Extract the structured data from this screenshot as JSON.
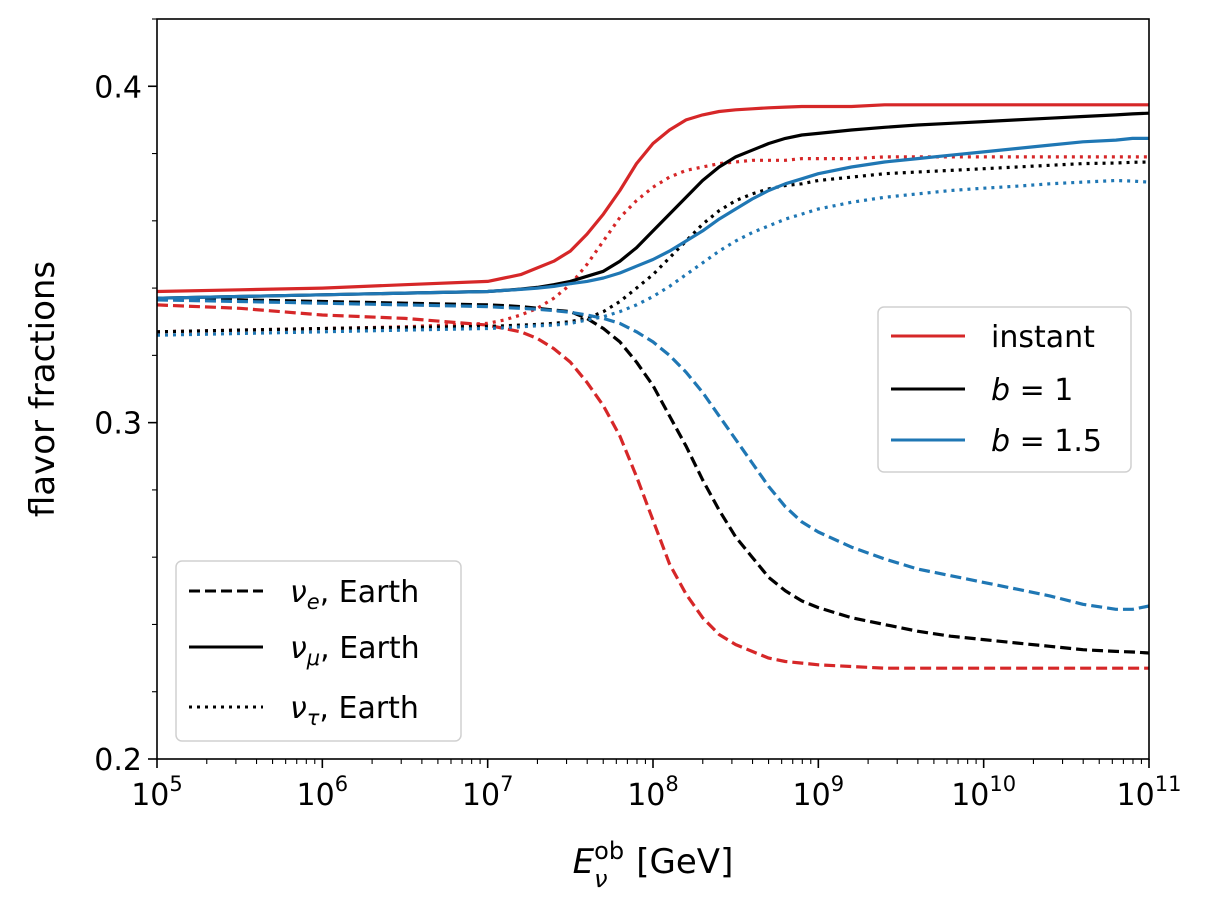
{
  "chart_data": {
    "type": "line",
    "xscale": "log",
    "xlim_log10": [
      5,
      11
    ],
    "ylim": [
      0.2,
      0.42
    ],
    "ylabel": "flavor fractions",
    "xlabel": {
      "base": "E",
      "sup": "ob",
      "sub": "ν",
      "unit": " [GeV]"
    },
    "x_ticks": [
      {
        "base": "10",
        "exp": "5"
      },
      {
        "base": "10",
        "exp": "6"
      },
      {
        "base": "10",
        "exp": "7"
      },
      {
        "base": "10",
        "exp": "8"
      },
      {
        "base": "10",
        "exp": "9"
      },
      {
        "base": "10",
        "exp": "10"
      },
      {
        "base": "10",
        "exp": "11"
      }
    ],
    "y_ticks": [
      "0.2",
      "0.3",
      "0.4"
    ],
    "y_tick_values": [
      0.2,
      0.3,
      0.4
    ],
    "colors": {
      "instant": "#d62728",
      "b1": "#000000",
      "b15": "#1f77b4"
    },
    "x_log10": [
      5.0,
      5.5,
      6.0,
      6.5,
      7.0,
      7.1,
      7.2,
      7.3,
      7.4,
      7.5,
      7.6,
      7.7,
      7.8,
      7.9,
      8.0,
      8.1,
      8.2,
      8.3,
      8.4,
      8.5,
      8.6,
      8.7,
      8.8,
      8.9,
      9.0,
      9.2,
      9.4,
      9.6,
      9.8,
      10.0,
      10.2,
      10.4,
      10.6,
      10.8,
      10.9,
      11.0
    ],
    "series": [
      {
        "name": "instant ν_e",
        "model": "instant",
        "flavor": "e",
        "color": "#d62728",
        "dash": "dashed",
        "values": [
          0.335,
          0.334,
          0.332,
          0.331,
          0.329,
          0.328,
          0.327,
          0.325,
          0.322,
          0.318,
          0.312,
          0.305,
          0.296,
          0.284,
          0.271,
          0.258,
          0.249,
          0.242,
          0.237,
          0.234,
          0.232,
          0.23,
          0.229,
          0.2285,
          0.228,
          0.2275,
          0.227,
          0.227,
          0.227,
          0.227,
          0.227,
          0.227,
          0.227,
          0.227,
          0.227,
          0.227
        ]
      },
      {
        "name": "instant ν_μ",
        "model": "instant",
        "flavor": "mu",
        "color": "#d62728",
        "dash": "solid",
        "values": [
          0.339,
          0.3395,
          0.34,
          0.341,
          0.342,
          0.343,
          0.344,
          0.346,
          0.348,
          0.351,
          0.356,
          0.362,
          0.369,
          0.377,
          0.383,
          0.387,
          0.39,
          0.3915,
          0.3925,
          0.393,
          0.3933,
          0.3936,
          0.3938,
          0.394,
          0.394,
          0.394,
          0.3945,
          0.3945,
          0.3945,
          0.3945,
          0.3945,
          0.3945,
          0.3945,
          0.3945,
          0.3945,
          0.3945
        ]
      },
      {
        "name": "instant ν_τ",
        "model": "instant",
        "flavor": "tau",
        "color": "#d62728",
        "dash": "dotted",
        "values": [
          0.327,
          0.3275,
          0.328,
          0.3285,
          0.3295,
          0.3305,
          0.332,
          0.334,
          0.337,
          0.341,
          0.347,
          0.354,
          0.361,
          0.366,
          0.37,
          0.373,
          0.375,
          0.376,
          0.377,
          0.3775,
          0.378,
          0.378,
          0.378,
          0.3785,
          0.3785,
          0.3785,
          0.379,
          0.379,
          0.379,
          0.379,
          0.379,
          0.379,
          0.379,
          0.379,
          0.379,
          0.379
        ]
      },
      {
        "name": "b=1 ν_e",
        "model": "b1",
        "flavor": "e",
        "color": "#000000",
        "dash": "dashed",
        "values": [
          0.337,
          0.3365,
          0.336,
          0.3355,
          0.335,
          0.3348,
          0.3345,
          0.334,
          0.3335,
          0.333,
          0.331,
          0.328,
          0.324,
          0.318,
          0.311,
          0.302,
          0.293,
          0.283,
          0.274,
          0.266,
          0.26,
          0.254,
          0.25,
          0.247,
          0.245,
          0.242,
          0.24,
          0.238,
          0.2365,
          0.2355,
          0.2345,
          0.2335,
          0.2325,
          0.232,
          0.2318,
          0.2315
        ]
      },
      {
        "name": "b=1 ν_μ",
        "model": "b1",
        "flavor": "mu",
        "color": "#000000",
        "dash": "solid",
        "values": [
          0.337,
          0.3375,
          0.338,
          0.3385,
          0.339,
          0.3393,
          0.3397,
          0.3402,
          0.341,
          0.342,
          0.3435,
          0.345,
          0.348,
          0.352,
          0.357,
          0.362,
          0.367,
          0.372,
          0.376,
          0.379,
          0.381,
          0.383,
          0.3845,
          0.3855,
          0.386,
          0.387,
          0.3878,
          0.3885,
          0.389,
          0.3895,
          0.39,
          0.3905,
          0.391,
          0.3915,
          0.3918,
          0.392
        ]
      },
      {
        "name": "b=1 ν_τ",
        "model": "b1",
        "flavor": "tau",
        "color": "#000000",
        "dash": "dotted",
        "values": [
          0.327,
          0.3275,
          0.328,
          0.3283,
          0.3286,
          0.3288,
          0.329,
          0.3292,
          0.3295,
          0.33,
          0.331,
          0.333,
          0.336,
          0.34,
          0.344,
          0.349,
          0.354,
          0.359,
          0.363,
          0.366,
          0.368,
          0.3695,
          0.3705,
          0.371,
          0.372,
          0.373,
          0.374,
          0.3745,
          0.375,
          0.3755,
          0.376,
          0.3765,
          0.377,
          0.3772,
          0.3774,
          0.3775
        ]
      },
      {
        "name": "b=1.5 ν_e",
        "model": "b15",
        "flavor": "e",
        "color": "#1f77b4",
        "dash": "dashed",
        "values": [
          0.3365,
          0.336,
          0.3355,
          0.335,
          0.3345,
          0.3342,
          0.334,
          0.3337,
          0.3333,
          0.3328,
          0.332,
          0.331,
          0.3295,
          0.327,
          0.324,
          0.32,
          0.315,
          0.309,
          0.302,
          0.295,
          0.288,
          0.281,
          0.275,
          0.2705,
          0.2675,
          0.263,
          0.2595,
          0.2565,
          0.2545,
          0.2525,
          0.2505,
          0.2485,
          0.246,
          0.2445,
          0.2445,
          0.2455
        ]
      },
      {
        "name": "b=1.5 ν_μ",
        "model": "b15",
        "flavor": "mu",
        "color": "#1f77b4",
        "dash": "solid",
        "values": [
          0.337,
          0.3375,
          0.338,
          0.3385,
          0.339,
          0.3393,
          0.3396,
          0.34,
          0.3405,
          0.3413,
          0.342,
          0.343,
          0.3445,
          0.3465,
          0.3485,
          0.351,
          0.354,
          0.357,
          0.3605,
          0.3635,
          0.3665,
          0.369,
          0.371,
          0.3725,
          0.374,
          0.376,
          0.3775,
          0.3785,
          0.3795,
          0.3805,
          0.3815,
          0.3825,
          0.3835,
          0.384,
          0.3845,
          0.3845
        ]
      },
      {
        "name": "b=1.5 ν_τ",
        "model": "b15",
        "flavor": "tau",
        "color": "#1f77b4",
        "dash": "dotted",
        "values": [
          0.326,
          0.3265,
          0.327,
          0.3275,
          0.328,
          0.3282,
          0.3285,
          0.3288,
          0.329,
          0.3295,
          0.3305,
          0.3315,
          0.333,
          0.335,
          0.3375,
          0.3405,
          0.344,
          0.3475,
          0.351,
          0.354,
          0.3565,
          0.3585,
          0.3605,
          0.362,
          0.3635,
          0.3655,
          0.367,
          0.368,
          0.369,
          0.3697,
          0.3703,
          0.371,
          0.3715,
          0.372,
          0.3718,
          0.3715
        ]
      }
    ],
    "legend_models": [
      {
        "label_plain": "instant",
        "color": "#d62728"
      },
      {
        "label_var": "b",
        "label_rest": " = 1",
        "color": "#000000"
      },
      {
        "label_var": "b",
        "label_rest": " = 1.5",
        "color": "#1f77b4"
      }
    ],
    "legend_models_position": "center-right",
    "legend_flavors": [
      {
        "sym": "ν",
        "sub": "e",
        "rest": ", Earth",
        "dash": "dashed"
      },
      {
        "sym": "ν",
        "sub": "μ",
        "rest": ", Earth",
        "dash": "solid"
      },
      {
        "sym": "ν",
        "sub": "τ",
        "rest": ", Earth",
        "dash": "dotted"
      }
    ],
    "legend_flavors_position": "lower-left",
    "grid": false
  }
}
